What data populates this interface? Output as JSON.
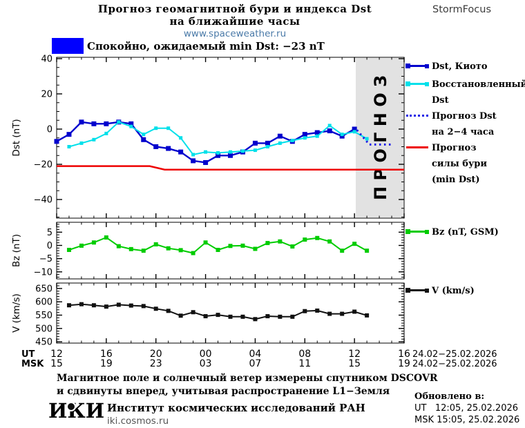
{
  "header": {
    "title_line1": "Прогноз геомагнитной бури и индекса Dst",
    "title_line2": "на ближайшие часы",
    "site": "www.spaceweather.ru",
    "brand": "StormFocus",
    "status_text": "Спокойно, ожидаемый min Dst: −23 nT",
    "status_color": "#0000ff"
  },
  "chart_data": [
    {
      "type": "line",
      "id": "dst",
      "ylabel": "Dst (nT)",
      "ylim": [
        -50,
        40.8
      ],
      "yticks": [
        40,
        20,
        0,
        -20,
        -40
      ],
      "xlabel": "",
      "x_hours_range": [
        0,
        28
      ],
      "forecast_zone": {
        "from_hour": 24.1,
        "label": "П Р О Г Н О З"
      },
      "series": [
        {
          "id": "storm-forecast",
          "name": "Прогноз силы бури (min Dst)",
          "color": "#ee0000",
          "width": 2.5,
          "points": [
            [
              0,
              -21
            ],
            [
              7.5,
              -21
            ],
            [
              8.7,
              -23
            ],
            [
              28,
              -23
            ]
          ]
        },
        {
          "id": "kyoto",
          "name": "Dst, Киото",
          "color": "#0000cd",
          "width": 2.4,
          "marker": 7,
          "start_hour": 0,
          "values": [
            -7,
            -3,
            4,
            3,
            3,
            4,
            3,
            -6,
            -10,
            -11,
            -13,
            -18,
            -19,
            -15,
            -15,
            -13,
            -8,
            -8,
            -4,
            -7,
            -3,
            -2,
            -1,
            -4,
            0
          ]
        },
        {
          "id": "restored",
          "name": "Восстановленный Dst",
          "color": "#00e0ea",
          "width": 2,
          "marker": 5,
          "start_hour": 1,
          "values": [
            -10,
            -8,
            -6,
            -2.5,
            4,
            1.5,
            -3,
            0.5,
            0.5,
            -5,
            -14.5,
            -13,
            -13.5,
            -13,
            -12.5,
            -12,
            -10,
            -8,
            -6.5,
            -5,
            -4,
            2,
            -3,
            -1.5,
            -5.5
          ]
        },
        {
          "id": "dst-forecast",
          "name": "Прогноз Dst на 2–4 часа",
          "color": "#1a1ae6",
          "width": 3,
          "dotted": true,
          "points": [
            [
              24.2,
              -0.5
            ],
            [
              25.2,
              -8.8
            ],
            [
              27,
              -8.8
            ]
          ]
        }
      ]
    },
    {
      "type": "line",
      "id": "bz",
      "ylabel": "Bz (nT)",
      "ylim": [
        -12.6,
        8.7
      ],
      "yticks": [
        5,
        0,
        -5,
        -10
      ],
      "series": [
        {
          "id": "bz",
          "name": "Bz (nT, GSM)",
          "color": "#00cc00",
          "width": 2,
          "marker": 6,
          "start_hour": 1,
          "values": [
            -1.7,
            -0.1,
            1.1,
            3,
            -0.3,
            -1.4,
            -2,
            0.4,
            -1.1,
            -1.8,
            -2.9,
            1.1,
            -1.7,
            -0.2,
            -0.1,
            -1.3,
            0.9,
            1.5,
            -0.4,
            2.2,
            2.8,
            1.5,
            -2,
            0.6,
            -2
          ]
        }
      ]
    },
    {
      "type": "line",
      "id": "v",
      "ylabel": "V (km/s)",
      "ylim": [
        445,
        670
      ],
      "yticks": [
        650,
        600,
        550,
        500,
        450
      ],
      "series": [
        {
          "id": "v",
          "name": "V (km/s)",
          "color": "#111111",
          "width": 2,
          "marker": 6,
          "start_hour": 1,
          "values": [
            587,
            591,
            587,
            582,
            589,
            586,
            584,
            574,
            566,
            548,
            561,
            546,
            551,
            544,
            544,
            535,
            546,
            544,
            544,
            565,
            567,
            555,
            555,
            563,
            549
          ]
        }
      ]
    }
  ],
  "xaxis": {
    "rows": [
      {
        "label": "UT",
        "ticks": [
          "12",
          "16",
          "20",
          "00",
          "04",
          "08",
          "12",
          "16"
        ],
        "date": "24.02−25.02.2026"
      },
      {
        "label": "MSK",
        "ticks": [
          "15",
          "19",
          "23",
          "03",
          "07",
          "11",
          "15",
          "19"
        ],
        "date": "24.02−25.02.2026"
      }
    ]
  },
  "legend": {
    "kyoto": {
      "label": "Dst, Киото"
    },
    "restored": {
      "lines": [
        "Восстановленный",
        "Dst"
      ]
    },
    "forecast": {
      "lines": [
        "Прогноз Dst",
        "на 2−4 часа"
      ]
    },
    "storm": {
      "lines": [
        "Прогноз",
        "силы бури",
        "(min Dst)"
      ]
    },
    "bz": {
      "label": "Bz (nT, GSM)"
    },
    "v": {
      "label": "V (km/s)"
    }
  },
  "footer": {
    "note_line1": "Магнитное поле и солнечный ветер измерены спутником DSCOVR",
    "note_line2": "и сдвинуты вперед, учитывая распространение L1−Земля",
    "logo": "ИКИ",
    "org_name": "Институт космических исследований РАН",
    "org_site": "iki.cosmos.ru",
    "updated_label": "Обновлено в:",
    "updated_ut": "UT   12:05, 25.02.2026",
    "updated_msk": "MSK 15:05, 25.02.2026"
  }
}
